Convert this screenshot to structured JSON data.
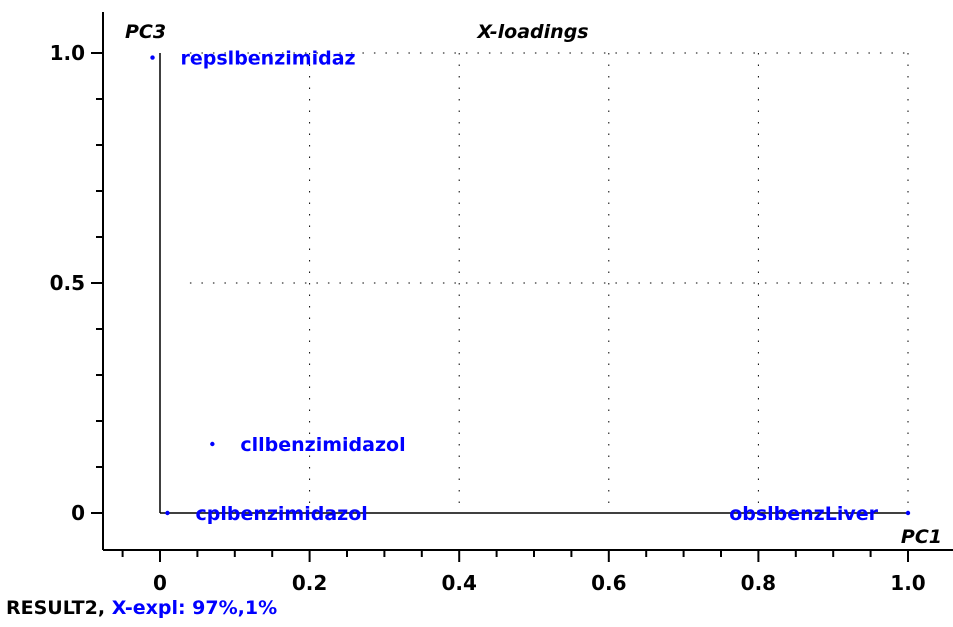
{
  "chart_data": {
    "type": "scatter",
    "title": "X-loadings",
    "xlabel": "PC1",
    "ylabel": "PC3",
    "xlim": [
      -0.08,
      1.0
    ],
    "ylim": [
      -0.08,
      1.0
    ],
    "x_ticks": [
      {
        "value": 0,
        "label": "0"
      },
      {
        "value": 0.2,
        "label": "0.2"
      },
      {
        "value": 0.4,
        "label": "0.4"
      },
      {
        "value": 0.6,
        "label": "0.6"
      },
      {
        "value": 0.8,
        "label": "0.8"
      },
      {
        "value": 1.0,
        "label": "1.0"
      }
    ],
    "y_ticks": [
      {
        "value": 0,
        "label": "0"
      },
      {
        "value": 0.5,
        "label": "0.5"
      },
      {
        "value": 1.0,
        "label": "1.0"
      }
    ],
    "grid": true,
    "points": [
      {
        "label": "repslbenzimidaz",
        "x": -0.01,
        "y": 0.99
      },
      {
        "label": "cllbenzimidazol",
        "x": 0.07,
        "y": 0.15
      },
      {
        "label": "cplbenzimidazol",
        "x": 0.01,
        "y": 0.0
      },
      {
        "label": "obslbenzLiver",
        "x": 1.0,
        "y": 0.0
      }
    ]
  },
  "footer": {
    "result_name": "RESULT2,",
    "explained": "X-expl: 97%,1%"
  },
  "colors": {
    "points": "#0000ff",
    "axes": "#000000",
    "grid": "#000000"
  }
}
